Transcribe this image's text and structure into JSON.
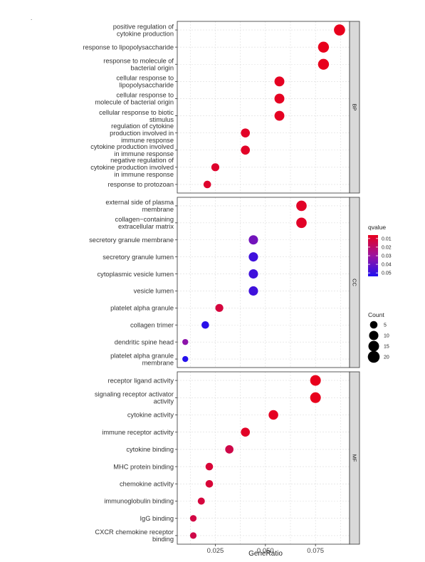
{
  "colors": {
    "low_q": "#E8001C",
    "high_q": "#2010F0",
    "panel_bg": "#FFFFFF",
    "grid": "#DCDCDC",
    "strip_bg": "#D9D9D9",
    "border": "#333333"
  },
  "legend": {
    "qvalue_title": "qvalue",
    "qvalue_ticks": [
      "0.01",
      "0.02",
      "0.03",
      "0.04",
      "0.05"
    ],
    "count_title": "Count",
    "count_ticks": [
      "5",
      "10",
      "15",
      "20"
    ]
  },
  "chart_data": {
    "type": "scatter",
    "xlabel": "GeneRatio",
    "xticks": [
      "0.025",
      "0.050",
      "0.075"
    ],
    "xlim": [
      0.006,
      0.092
    ],
    "colorbar": {
      "label": "qvalue",
      "range": [
        0.006,
        0.054
      ],
      "ticks": [
        0.01,
        0.02,
        0.03,
        0.04,
        0.05
      ]
    },
    "size": {
      "label": "Count",
      "ticks": [
        5,
        10,
        15,
        20
      ]
    },
    "facets": [
      {
        "name": "BP",
        "terms": [
          {
            "label": [
              "positive regulation of",
              "cytokine production"
            ],
            "x": 0.087,
            "count": 17,
            "q": 0.006
          },
          {
            "label": [
              "response to lipopolysaccharide"
            ],
            "x": 0.079,
            "count": 16,
            "q": 0.006
          },
          {
            "label": [
              "response to molecule of",
              "bacterial origin"
            ],
            "x": 0.079,
            "count": 16,
            "q": 0.006
          },
          {
            "label": [
              "cellular response to",
              "lipopolysaccharide"
            ],
            "x": 0.057,
            "count": 12,
            "q": 0.007
          },
          {
            "label": [
              "cellular response to",
              "molecule of bacterial origin"
            ],
            "x": 0.057,
            "count": 12,
            "q": 0.007
          },
          {
            "label": [
              "cellular response to biotic",
              "stimulus"
            ],
            "x": 0.057,
            "count": 12,
            "q": 0.007
          },
          {
            "label": [
              "regulation of cytokine",
              "production involved in",
              "immune response"
            ],
            "x": 0.04,
            "count": 9,
            "q": 0.008
          },
          {
            "label": [
              "cytokine production involved",
              "in immune response"
            ],
            "x": 0.04,
            "count": 9,
            "q": 0.008
          },
          {
            "label": [
              "negative regulation of",
              "cytokine production involved",
              "in immune response"
            ],
            "x": 0.025,
            "count": 6,
            "q": 0.009
          },
          {
            "label": [
              "response to protozoan"
            ],
            "x": 0.021,
            "count": 5,
            "q": 0.009
          }
        ]
      },
      {
        "name": "CC",
        "terms": [
          {
            "label": [
              "external side of plasma",
              "membrane"
            ],
            "x": 0.068,
            "count": 14,
            "q": 0.008
          },
          {
            "label": [
              "collagen−containing",
              "extracellular matrix"
            ],
            "x": 0.068,
            "count": 14,
            "q": 0.008
          },
          {
            "label": [
              "secretory granule membrane"
            ],
            "x": 0.044,
            "count": 10,
            "q": 0.038
          },
          {
            "label": [
              "secretory granule lumen"
            ],
            "x": 0.044,
            "count": 10,
            "q": 0.048
          },
          {
            "label": [
              "cytoplasmic vesicle lumen"
            ],
            "x": 0.044,
            "count": 10,
            "q": 0.048
          },
          {
            "label": [
              "vesicle lumen"
            ],
            "x": 0.044,
            "count": 10,
            "q": 0.048
          },
          {
            "label": [
              "platelet alpha granule"
            ],
            "x": 0.027,
            "count": 6,
            "q": 0.012
          },
          {
            "label": [
              "collagen trimer"
            ],
            "x": 0.02,
            "count": 5,
            "q": 0.052
          },
          {
            "label": [
              "dendritic spine head"
            ],
            "x": 0.01,
            "count": 2,
            "q": 0.033
          },
          {
            "label": [
              "platelet alpha granule",
              "membrane"
            ],
            "x": 0.01,
            "count": 2,
            "q": 0.053
          }
        ]
      },
      {
        "name": "MF",
        "terms": [
          {
            "label": [
              "receptor ligand activity"
            ],
            "x": 0.075,
            "count": 15,
            "q": 0.006
          },
          {
            "label": [
              "signaling receptor activator",
              "activity"
            ],
            "x": 0.075,
            "count": 15,
            "q": 0.006
          },
          {
            "label": [
              "cytokine activity"
            ],
            "x": 0.054,
            "count": 11,
            "q": 0.007
          },
          {
            "label": [
              "immune receptor activity"
            ],
            "x": 0.04,
            "count": 9,
            "q": 0.008
          },
          {
            "label": [
              "cytokine binding"
            ],
            "x": 0.032,
            "count": 7,
            "q": 0.014
          },
          {
            "label": [
              "MHC protein binding"
            ],
            "x": 0.022,
            "count": 5,
            "q": 0.011
          },
          {
            "label": [
              "chemokine activity"
            ],
            "x": 0.022,
            "count": 5,
            "q": 0.011
          },
          {
            "label": [
              "immunoglobulin binding"
            ],
            "x": 0.018,
            "count": 4,
            "q": 0.012
          },
          {
            "label": [
              "IgG binding"
            ],
            "x": 0.014,
            "count": 3,
            "q": 0.013
          },
          {
            "label": [
              "CXCR chemokine receptor",
              "binding"
            ],
            "x": 0.014,
            "count": 3,
            "q": 0.014
          }
        ]
      }
    ]
  }
}
